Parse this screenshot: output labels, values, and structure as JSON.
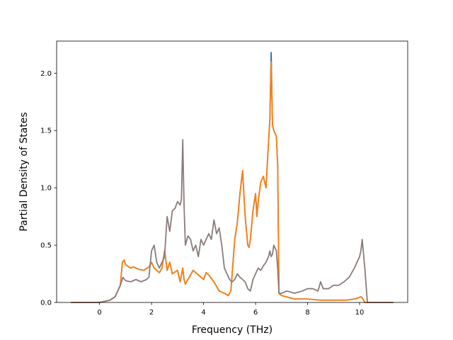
{
  "chart_data": {
    "type": "line",
    "title": "",
    "xlabel": "Frequency (THz)",
    "ylabel": "Partial Density of States",
    "xlim": [
      -1.65,
      11.85
    ],
    "ylim": [
      0,
      2.28
    ],
    "xticks": [
      0,
      2,
      4,
      6,
      8,
      10
    ],
    "xtick_labels": [
      "0",
      "2",
      "4",
      "6",
      "8",
      "10"
    ],
    "yticks": [
      0.0,
      0.5,
      1.0,
      1.5,
      2.0
    ],
    "ytick_labels": [
      "0.0",
      "0.5",
      "1.0",
      "1.5",
      "2.0"
    ],
    "grid": false,
    "legend": "none",
    "series": [
      {
        "color": "#1f77b4",
        "x": [
          -1.1,
          0.0,
          0.4,
          0.6,
          0.7,
          0.8,
          0.88,
          0.95,
          1.0,
          1.2,
          1.3,
          1.5,
          1.7,
          1.9,
          2.0,
          2.1,
          2.2,
          2.3,
          2.4,
          2.5,
          2.6,
          2.7,
          2.8,
          3.0,
          3.1,
          3.2,
          3.25,
          3.3,
          3.4,
          3.6,
          3.8,
          4.0,
          4.1,
          4.2,
          4.4,
          4.6,
          4.8,
          4.95,
          5.05,
          5.2,
          5.3,
          5.4,
          5.5,
          5.6,
          5.7,
          5.75,
          5.8,
          5.9,
          6.0,
          6.05,
          6.1,
          6.2,
          6.3,
          6.4,
          6.5,
          6.55,
          6.6,
          6.65,
          6.7,
          6.8,
          6.85,
          6.9,
          7.0,
          7.5,
          8.0,
          8.5,
          9.0,
          9.5,
          9.8,
          9.95,
          10.05,
          10.1,
          10.2,
          10.3,
          11.3
        ],
        "y": [
          0.0,
          0.0,
          0.02,
          0.05,
          0.1,
          0.15,
          0.35,
          0.37,
          0.33,
          0.3,
          0.31,
          0.29,
          0.28,
          0.31,
          0.35,
          0.3,
          0.28,
          0.26,
          0.3,
          0.45,
          0.28,
          0.35,
          0.25,
          0.28,
          0.18,
          0.3,
          0.2,
          0.16,
          0.2,
          0.28,
          0.24,
          0.2,
          0.26,
          0.24,
          0.18,
          0.1,
          0.08,
          0.06,
          0.1,
          0.55,
          0.7,
          0.95,
          1.15,
          0.75,
          0.5,
          0.48,
          0.55,
          0.8,
          0.95,
          0.75,
          0.88,
          1.05,
          1.1,
          1.0,
          1.4,
          1.6,
          2.18,
          1.55,
          1.5,
          1.45,
          1.2,
          0.08,
          0.06,
          0.03,
          0.03,
          0.02,
          0.02,
          0.02,
          0.03,
          0.04,
          0.05,
          0.04,
          0.0,
          0.0,
          0.0
        ]
      },
      {
        "color": "#ff7f0e",
        "x": [
          -1.1,
          0.0,
          0.4,
          0.6,
          0.7,
          0.8,
          0.88,
          0.95,
          1.0,
          1.2,
          1.3,
          1.5,
          1.7,
          1.9,
          2.0,
          2.1,
          2.2,
          2.3,
          2.4,
          2.5,
          2.6,
          2.7,
          2.8,
          3.0,
          3.1,
          3.2,
          3.25,
          3.3,
          3.4,
          3.6,
          3.8,
          4.0,
          4.1,
          4.2,
          4.4,
          4.6,
          4.8,
          4.95,
          5.05,
          5.2,
          5.3,
          5.4,
          5.5,
          5.6,
          5.7,
          5.75,
          5.8,
          5.9,
          6.0,
          6.05,
          6.1,
          6.2,
          6.3,
          6.4,
          6.5,
          6.55,
          6.6,
          6.65,
          6.7,
          6.8,
          6.85,
          6.9,
          7.0,
          7.5,
          8.0,
          8.5,
          9.0,
          9.5,
          9.8,
          9.95,
          10.05,
          10.1,
          10.2,
          10.3,
          11.3
        ],
        "y": [
          0.0,
          0.0,
          0.02,
          0.05,
          0.1,
          0.15,
          0.35,
          0.37,
          0.33,
          0.3,
          0.31,
          0.29,
          0.28,
          0.31,
          0.35,
          0.3,
          0.28,
          0.26,
          0.3,
          0.45,
          0.28,
          0.35,
          0.25,
          0.28,
          0.18,
          0.3,
          0.2,
          0.16,
          0.2,
          0.28,
          0.24,
          0.2,
          0.26,
          0.24,
          0.18,
          0.1,
          0.08,
          0.06,
          0.1,
          0.55,
          0.7,
          0.95,
          1.15,
          0.75,
          0.5,
          0.48,
          0.55,
          0.8,
          0.95,
          0.75,
          0.88,
          1.05,
          1.1,
          1.0,
          1.4,
          1.6,
          2.1,
          1.55,
          1.5,
          1.45,
          1.2,
          0.08,
          0.06,
          0.03,
          0.03,
          0.02,
          0.02,
          0.02,
          0.03,
          0.04,
          0.05,
          0.04,
          0.0,
          0.0,
          0.0
        ]
      },
      {
        "color": "#8c7b7b",
        "x": [
          -1.1,
          0.0,
          0.4,
          0.6,
          0.7,
          0.8,
          0.9,
          1.0,
          1.2,
          1.4,
          1.6,
          1.8,
          1.9,
          2.0,
          2.1,
          2.2,
          2.3,
          2.4,
          2.5,
          2.6,
          2.7,
          2.8,
          2.9,
          3.0,
          3.1,
          3.15,
          3.2,
          3.25,
          3.3,
          3.4,
          3.5,
          3.6,
          3.7,
          3.8,
          3.9,
          4.0,
          4.1,
          4.2,
          4.3,
          4.4,
          4.5,
          4.6,
          4.7,
          4.8,
          4.9,
          5.0,
          5.1,
          5.2,
          5.3,
          5.4,
          5.5,
          5.6,
          5.7,
          5.8,
          5.9,
          6.0,
          6.1,
          6.2,
          6.3,
          6.4,
          6.5,
          6.55,
          6.6,
          6.65,
          6.7,
          6.8,
          6.85,
          6.9,
          7.0,
          7.2,
          7.5,
          7.8,
          8.0,
          8.2,
          8.4,
          8.5,
          8.6,
          8.8,
          9.0,
          9.2,
          9.4,
          9.6,
          9.8,
          9.9,
          10.0,
          10.05,
          10.1,
          10.2,
          10.3,
          11.3
        ],
        "y": [
          0.0,
          0.0,
          0.02,
          0.05,
          0.1,
          0.15,
          0.22,
          0.19,
          0.18,
          0.2,
          0.18,
          0.2,
          0.22,
          0.45,
          0.5,
          0.35,
          0.3,
          0.35,
          0.4,
          0.75,
          0.62,
          0.8,
          0.82,
          0.88,
          0.85,
          0.9,
          1.42,
          0.85,
          0.5,
          0.58,
          0.55,
          0.45,
          0.5,
          0.4,
          0.55,
          0.5,
          0.55,
          0.6,
          0.55,
          0.72,
          0.6,
          0.65,
          0.5,
          0.3,
          0.25,
          0.2,
          0.18,
          0.2,
          0.25,
          0.22,
          0.2,
          0.18,
          0.12,
          0.1,
          0.2,
          0.25,
          0.3,
          0.28,
          0.32,
          0.35,
          0.4,
          0.45,
          0.4,
          0.42,
          0.5,
          0.45,
          0.3,
          0.08,
          0.08,
          0.1,
          0.08,
          0.1,
          0.12,
          0.12,
          0.1,
          0.18,
          0.12,
          0.12,
          0.15,
          0.15,
          0.18,
          0.22,
          0.3,
          0.35,
          0.4,
          0.45,
          0.55,
          0.3,
          0.0,
          0.0
        ]
      }
    ]
  }
}
